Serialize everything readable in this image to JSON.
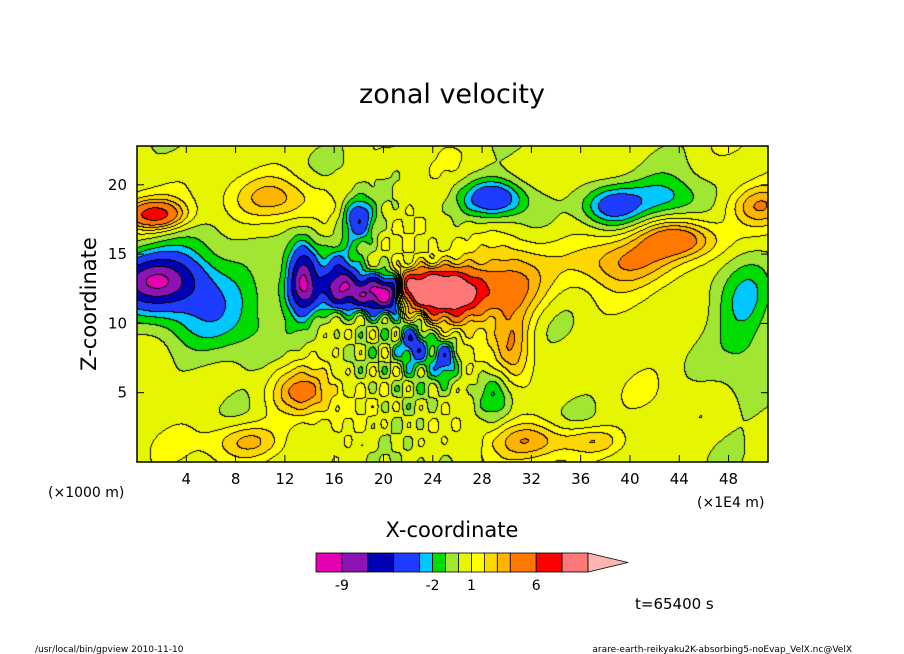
{
  "chart_data": {
    "type": "heatmap",
    "title": "zonal velocity",
    "xlabel": "X-coordinate",
    "ylabel": "Z-coordinate",
    "x_unit_label": "(×1E4 m)",
    "y_unit_label": "(×1000 m)",
    "xlim": [
      0,
      51.2
    ],
    "ylim": [
      0,
      22.8
    ],
    "x_ticks": [
      4,
      8,
      12,
      16,
      20,
      24,
      28,
      32,
      36,
      40,
      44,
      48
    ],
    "y_ticks": [
      5,
      10,
      15,
      20
    ],
    "grid": false,
    "time_label": "t=65400 s",
    "colorbar": {
      "levels": [
        -11,
        -9,
        -7,
        -5,
        -3,
        -2,
        -1,
        0,
        1,
        2,
        3,
        4,
        6,
        8,
        10
      ],
      "colors": [
        "#e600b4",
        "#8c14b4",
        "#0000b4",
        "#1e3cff",
        "#00c8ff",
        "#00dc00",
        "#a0e632",
        "#e6f500",
        "#ffff00",
        "#ffd700",
        "#ffb400",
        "#ff7800",
        "#ff0000",
        "#ff7878",
        "#ffb4b4"
      ],
      "tick_labels": [
        "-9",
        "-2",
        "1",
        "6"
      ],
      "tick_values": [
        -9,
        -2,
        1,
        6
      ]
    },
    "blobs": [
      {
        "x": 1.5,
        "z": 13.5,
        "rx": 4.5,
        "rz": 2.5,
        "v": -3.5
      },
      {
        "x": 1.5,
        "z": 13.0,
        "rx": 3.2,
        "rz": 1.6,
        "v": -5.5
      },
      {
        "x": 6.0,
        "z": 11.0,
        "rx": 6.0,
        "rz": 3.5,
        "v": -2.5
      },
      {
        "x": 1.5,
        "z": 18.0,
        "rx": 3.5,
        "rz": 1.5,
        "v": 2.5
      },
      {
        "x": 1.5,
        "z": 17.8,
        "rx": 2.2,
        "rz": 0.9,
        "v": 4.5
      },
      {
        "x": 11.5,
        "z": 19.0,
        "rx": 3.5,
        "rz": 1.6,
        "v": 2.5
      },
      {
        "x": 13.5,
        "z": 13.5,
        "rx": 1.6,
        "rz": 3.0,
        "v": -3.5
      },
      {
        "x": 13.5,
        "z": 13.0,
        "rx": 1.0,
        "rz": 2.2,
        "v": -5.5
      },
      {
        "x": 16.5,
        "z": 13.0,
        "rx": 1.3,
        "rz": 2.0,
        "v": -5.5
      },
      {
        "x": 18.0,
        "z": 17.5,
        "rx": 1.2,
        "rz": 1.5,
        "v": -5.0
      },
      {
        "x": 20.0,
        "z": 12.0,
        "rx": 2.4,
        "rz": 1.3,
        "v": -6.5
      },
      {
        "x": 23.5,
        "z": 12.5,
        "rx": 3.5,
        "rz": 1.5,
        "v": 6.5
      },
      {
        "x": 26.0,
        "z": 11.5,
        "rx": 2.5,
        "rz": 2.0,
        "v": 4.5
      },
      {
        "x": 30.5,
        "z": 13.0,
        "rx": 2.8,
        "rz": 3.0,
        "v": 3.5
      },
      {
        "x": 40.0,
        "z": 14.5,
        "rx": 5.0,
        "rz": 1.8,
        "v": 3.5
      },
      {
        "x": 44.0,
        "z": 16.0,
        "rx": 3.0,
        "rz": 1.3,
        "v": 4.5
      },
      {
        "x": 50.5,
        "z": 18.5,
        "rx": 2.5,
        "rz": 1.5,
        "v": 3.5
      },
      {
        "x": 38.5,
        "z": 18.5,
        "rx": 2.5,
        "rz": 1.5,
        "v": -5.0
      },
      {
        "x": 43.0,
        "z": 19.0,
        "rx": 3.0,
        "rz": 1.5,
        "v": -2.5
      },
      {
        "x": 49.5,
        "z": 11.0,
        "rx": 2.5,
        "rz": 4.5,
        "v": -2.5
      },
      {
        "x": 29.0,
        "z": 19.0,
        "rx": 2.5,
        "rz": 1.3,
        "v": -5.0
      },
      {
        "x": 22.5,
        "z": 8.5,
        "rx": 1.2,
        "rz": 1.5,
        "v": -5.5
      },
      {
        "x": 25.0,
        "z": 7.5,
        "rx": 1.0,
        "rz": 1.5,
        "v": -4.5
      },
      {
        "x": 29.0,
        "z": 5.0,
        "rx": 1.5,
        "rz": 2.0,
        "v": -2.5
      },
      {
        "x": 13.5,
        "z": 5.0,
        "rx": 2.5,
        "rz": 1.8,
        "v": 3.5
      },
      {
        "x": 9.0,
        "z": 1.5,
        "rx": 3.0,
        "rz": 1.3,
        "v": 3.0
      },
      {
        "x": 32.0,
        "z": 1.5,
        "rx": 3.0,
        "rz": 1.3,
        "v": 3.0
      },
      {
        "x": 37.0,
        "z": 1.5,
        "rx": 2.5,
        "rz": 1.0,
        "v": 2.5
      },
      {
        "x": 30.5,
        "z": 8.0,
        "rx": 1.5,
        "rz": 3.0,
        "v": 3.0
      }
    ]
  },
  "footer": {
    "left": "/usr/local/bin/gpview  2010-11-10",
    "right": "arare-earth-reikyaku2K-absorbing5-noEvap_VelX.nc@VelX"
  }
}
